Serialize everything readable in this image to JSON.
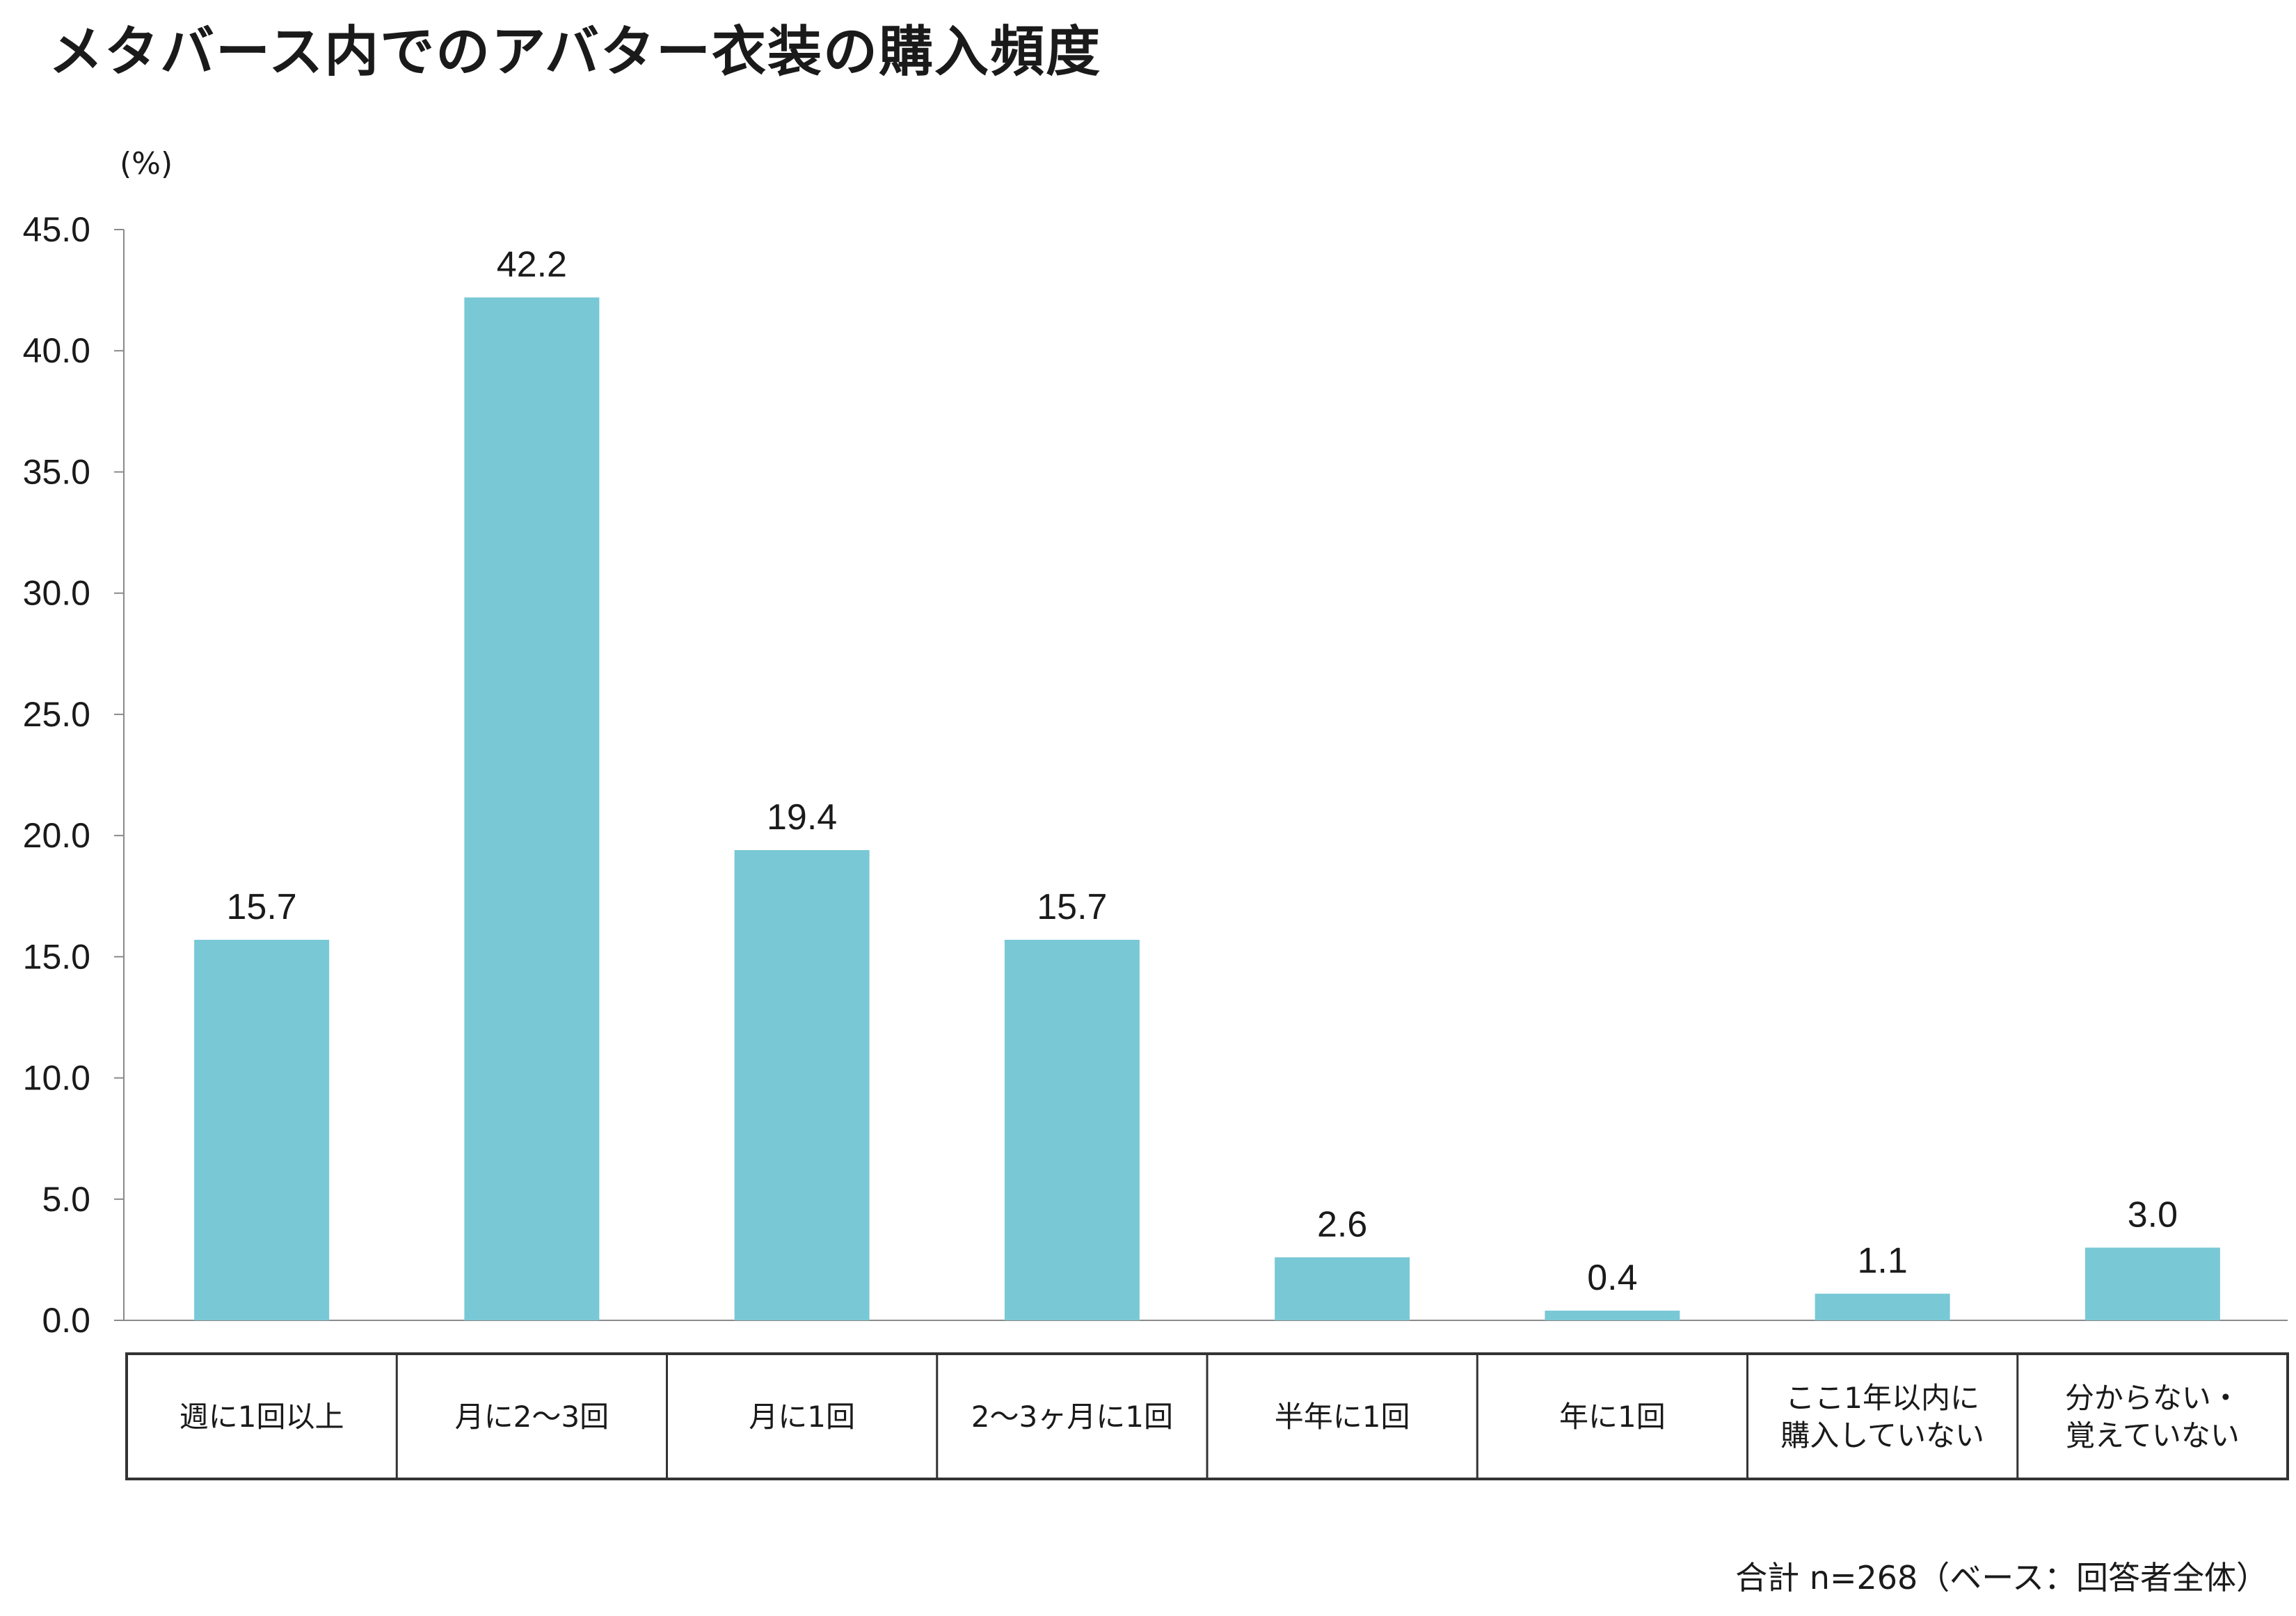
{
  "title": "メタバース内でのアバター衣装の購入頻度",
  "unit": "(%)",
  "note": "合計 n=268（ベース：回答者全体）",
  "chart_data": {
    "type": "bar",
    "categories": [
      [
        "週に1回以上"
      ],
      [
        "月に2〜3回"
      ],
      [
        "月に1回"
      ],
      [
        "2〜3ヶ月に1回"
      ],
      [
        "半年に1回"
      ],
      [
        "年に1回"
      ],
      [
        "ここ1年以内に",
        "購入していない"
      ],
      [
        "分からない・",
        "覚えていない"
      ]
    ],
    "values": [
      15.7,
      42.2,
      19.4,
      15.7,
      2.6,
      0.4,
      1.1,
      3.0
    ],
    "value_labels": [
      "15.7",
      "42.2",
      "19.4",
      "15.7",
      "2.6",
      "0.4",
      "1.1",
      "3.0"
    ],
    "yticks": [
      "0.0",
      "5.0",
      "10.0",
      "15.0",
      "20.0",
      "25.0",
      "30.0",
      "35.0",
      "40.0",
      "45.0"
    ],
    "ylim": [
      0,
      45
    ],
    "bar_color": "#79c8d6",
    "grid": false
  }
}
